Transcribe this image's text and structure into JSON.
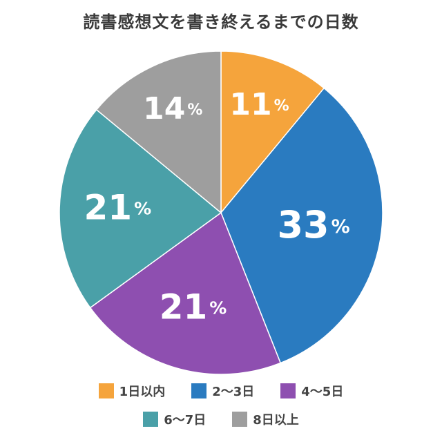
{
  "chart_data": {
    "type": "pie",
    "title": "読書感想文を書き終えるまでの日数",
    "categories": [
      "1日以内",
      "2〜3日",
      "4〜5日",
      "6〜7日",
      "8日以上"
    ],
    "values": [
      11,
      33,
      21,
      21,
      14
    ],
    "unit": "%",
    "colors": [
      "#F5A43C",
      "#2A7BC0",
      "#8E4FB0",
      "#4AA0A8",
      "#9E9E9E"
    ],
    "legend_position": "bottom"
  }
}
